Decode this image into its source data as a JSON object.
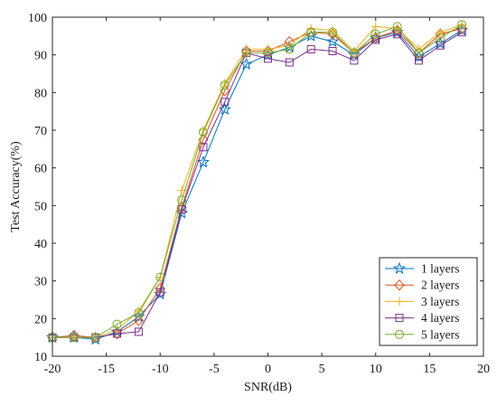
{
  "chart_data": {
    "type": "line",
    "xlabel": "SNR(dB)",
    "ylabel": "Test Accuracy(%)",
    "xlim": [
      -20,
      20
    ],
    "ylim": [
      10,
      100
    ],
    "x_ticks": [
      -20,
      -15,
      -10,
      -5,
      0,
      5,
      10,
      15,
      20
    ],
    "y_ticks": [
      10,
      20,
      30,
      40,
      50,
      60,
      70,
      80,
      90,
      100
    ],
    "x_tick_labels": [
      "-20",
      "-15",
      "-10",
      "-5",
      "0",
      "5",
      "10",
      "15",
      "20"
    ],
    "y_tick_labels": [
      "10",
      "20",
      "30",
      "40",
      "50",
      "60",
      "70",
      "80",
      "90",
      "100"
    ],
    "grid": false,
    "legend_position": "bottom-right",
    "x": [
      -20,
      -18,
      -16,
      -14,
      -12,
      -10,
      -8,
      -6,
      -4,
      -2,
      0,
      2,
      4,
      6,
      8,
      10,
      12,
      14,
      16,
      18
    ],
    "series": [
      {
        "name": "1 layers",
        "color": "#0072BD",
        "marker": "star",
        "values": [
          15,
          15,
          14.5,
          16.5,
          20.5,
          26.5,
          48,
          61.5,
          75.5,
          87.5,
          90,
          92,
          95,
          93.5,
          90,
          94.5,
          96,
          89.5,
          93,
          96.5
        ]
      },
      {
        "name": "2 layers",
        "color": "#D95319",
        "marker": "diamond",
        "values": [
          15,
          15.5,
          15,
          16,
          19.5,
          28,
          49.5,
          67.5,
          80.5,
          91,
          91,
          93.5,
          96,
          95.5,
          90.5,
          94.5,
          96.5,
          90.5,
          95.5,
          97
        ]
      },
      {
        "name": "3 layers",
        "color": "#EDB120",
        "marker": "plus",
        "values": [
          15,
          15,
          15,
          17,
          22,
          31,
          54,
          70,
          82.5,
          91.5,
          91.5,
          92.5,
          97,
          96.5,
          91,
          97.5,
          97,
          91.5,
          96,
          98
        ]
      },
      {
        "name": "4 layers",
        "color": "#7E2F8E",
        "marker": "square",
        "values": [
          15,
          15,
          15,
          16,
          16.5,
          27,
          49,
          65.5,
          77.5,
          90.5,
          89,
          88,
          91.5,
          91,
          88.5,
          94,
          95.5,
          88.5,
          92.5,
          96
        ]
      },
      {
        "name": "5 layers",
        "color": "#77AC30",
        "marker": "circle",
        "values": [
          15,
          15,
          15,
          18.5,
          21.5,
          31,
          51.5,
          69.5,
          82,
          90.5,
          90.5,
          91.5,
          96,
          96,
          90.5,
          95.5,
          97.5,
          90.5,
          94.5,
          98
        ]
      }
    ]
  }
}
